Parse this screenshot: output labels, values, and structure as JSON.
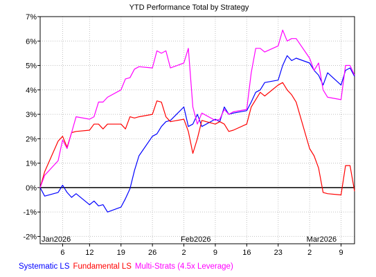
{
  "chart_data": {
    "type": "line",
    "title": "YTD Performance Total by Strategy",
    "xlabel": "",
    "ylabel": "",
    "ylim": [
      -2.3,
      7.0
    ],
    "y_ticks": [
      {
        "value": 7,
        "label": "7%"
      },
      {
        "value": 6,
        "label": "6%"
      },
      {
        "value": 5,
        "label": "5%"
      },
      {
        "value": 4,
        "label": "4%"
      },
      {
        "value": 3,
        "label": "3%"
      },
      {
        "value": 2,
        "label": "2%"
      },
      {
        "value": 1,
        "label": "1%"
      },
      {
        "value": 0,
        "label": "0%"
      },
      {
        "value": -1,
        "label": "-1%"
      },
      {
        "value": -2,
        "label": "-2%"
      }
    ],
    "x_range": [
      "2026-01-01",
      "2026-03-12"
    ],
    "x_ticks": [
      {
        "date": "2026-01-06",
        "label": "6"
      },
      {
        "date": "2026-01-12",
        "label": "12"
      },
      {
        "date": "2026-01-19",
        "label": "19"
      },
      {
        "date": "2026-01-26",
        "label": "26"
      },
      {
        "date": "2026-02-02",
        "label": "2"
      },
      {
        "date": "2026-02-09",
        "label": "9"
      },
      {
        "date": "2026-02-16",
        "label": "16"
      },
      {
        "date": "2026-02-23",
        "label": "23"
      },
      {
        "date": "2026-03-02",
        "label": "2"
      },
      {
        "date": "2026-03-09",
        "label": "9"
      }
    ],
    "period_labels": [
      {
        "date": "2026-01-01",
        "label": "Jan2026"
      },
      {
        "date": "2026-02-01",
        "label": "Feb2026"
      },
      {
        "date": "2026-03-01",
        "label": "Mar2026"
      }
    ],
    "grid": true,
    "zero_line": true,
    "legend_position": "bottom",
    "series": [
      {
        "name": "Systematic LS",
        "color": "#0000ff",
        "points": [
          [
            "2026-01-01",
            0.0
          ],
          [
            "2026-01-02",
            -0.35
          ],
          [
            "2026-01-05",
            -0.2
          ],
          [
            "2026-01-06",
            0.1
          ],
          [
            "2026-01-07",
            -0.2
          ],
          [
            "2026-01-08",
            -0.4
          ],
          [
            "2026-01-09",
            -0.25
          ],
          [
            "2026-01-12",
            -0.7
          ],
          [
            "2026-01-13",
            -0.55
          ],
          [
            "2026-01-14",
            -0.75
          ],
          [
            "2026-01-15",
            -0.7
          ],
          [
            "2026-01-16",
            -1.0
          ],
          [
            "2026-01-19",
            -0.8
          ],
          [
            "2026-01-20",
            -0.45
          ],
          [
            "2026-01-21",
            -0.05
          ],
          [
            "2026-01-22",
            0.7
          ],
          [
            "2026-01-23",
            1.3
          ],
          [
            "2026-01-26",
            2.1
          ],
          [
            "2026-01-27",
            2.2
          ],
          [
            "2026-01-28",
            2.5
          ],
          [
            "2026-01-29",
            2.7
          ],
          [
            "2026-01-30",
            2.75
          ],
          [
            "2026-02-02",
            3.3
          ],
          [
            "2026-02-03",
            2.5
          ],
          [
            "2026-02-04",
            2.6
          ],
          [
            "2026-02-05",
            3.0
          ],
          [
            "2026-02-06",
            2.5
          ],
          [
            "2026-02-09",
            2.8
          ],
          [
            "2026-02-10",
            2.7
          ],
          [
            "2026-02-11",
            3.3
          ],
          [
            "2026-02-12",
            3.0
          ],
          [
            "2026-02-13",
            3.05
          ],
          [
            "2026-02-16",
            3.15
          ],
          [
            "2026-02-17",
            3.5
          ],
          [
            "2026-02-18",
            3.9
          ],
          [
            "2026-02-19",
            4.0
          ],
          [
            "2026-02-20",
            4.3
          ],
          [
            "2026-02-23",
            4.4
          ],
          [
            "2026-02-24",
            5.0
          ],
          [
            "2026-02-25",
            5.4
          ],
          [
            "2026-02-26",
            5.2
          ],
          [
            "2026-02-27",
            5.3
          ],
          [
            "2026-03-02",
            5.1
          ],
          [
            "2026-03-03",
            4.8
          ],
          [
            "2026-03-04",
            4.6
          ],
          [
            "2026-03-05",
            4.2
          ],
          [
            "2026-03-06",
            4.7
          ],
          [
            "2026-03-09",
            4.2
          ],
          [
            "2026-03-10",
            4.8
          ],
          [
            "2026-03-11",
            4.9
          ],
          [
            "2026-03-12",
            4.55
          ]
        ]
      },
      {
        "name": "Fundamental LS",
        "color": "#ff0000",
        "points": [
          [
            "2026-01-01",
            0.0
          ],
          [
            "2026-01-02",
            0.65
          ],
          [
            "2026-01-05",
            1.9
          ],
          [
            "2026-01-06",
            2.1
          ],
          [
            "2026-01-07",
            1.65
          ],
          [
            "2026-01-08",
            2.25
          ],
          [
            "2026-01-09",
            2.3
          ],
          [
            "2026-01-12",
            2.35
          ],
          [
            "2026-01-13",
            2.6
          ],
          [
            "2026-01-14",
            2.6
          ],
          [
            "2026-01-15",
            2.4
          ],
          [
            "2026-01-16",
            2.6
          ],
          [
            "2026-01-19",
            2.6
          ],
          [
            "2026-01-20",
            2.4
          ],
          [
            "2026-01-21",
            2.9
          ],
          [
            "2026-01-22",
            2.85
          ],
          [
            "2026-01-23",
            2.9
          ],
          [
            "2026-01-26",
            3.0
          ],
          [
            "2026-01-27",
            3.55
          ],
          [
            "2026-01-28",
            3.5
          ],
          [
            "2026-01-29",
            2.9
          ],
          [
            "2026-01-30",
            2.7
          ],
          [
            "2026-02-02",
            2.8
          ],
          [
            "2026-02-03",
            2.3
          ],
          [
            "2026-02-04",
            1.4
          ],
          [
            "2026-02-05",
            2.0
          ],
          [
            "2026-02-06",
            2.75
          ],
          [
            "2026-02-09",
            2.6
          ],
          [
            "2026-02-10",
            2.7
          ],
          [
            "2026-02-11",
            2.6
          ],
          [
            "2026-02-12",
            2.3
          ],
          [
            "2026-02-13",
            2.35
          ],
          [
            "2026-02-16",
            2.6
          ],
          [
            "2026-02-17",
            3.3
          ],
          [
            "2026-02-18",
            3.6
          ],
          [
            "2026-02-19",
            3.9
          ],
          [
            "2026-02-20",
            3.75
          ],
          [
            "2026-02-23",
            4.2
          ],
          [
            "2026-02-24",
            4.3
          ],
          [
            "2026-02-25",
            4.0
          ],
          [
            "2026-02-26",
            3.8
          ],
          [
            "2026-02-27",
            3.5
          ],
          [
            "2026-03-02",
            1.6
          ],
          [
            "2026-03-03",
            1.3
          ],
          [
            "2026-03-04",
            0.8
          ],
          [
            "2026-03-05",
            -0.2
          ],
          [
            "2026-03-06",
            -0.25
          ],
          [
            "2026-03-09",
            -0.3
          ],
          [
            "2026-03-10",
            0.9
          ],
          [
            "2026-03-11",
            0.9
          ],
          [
            "2026-03-12",
            -0.15
          ]
        ]
      },
      {
        "name": "Multi-Strats (4.5x Leverage)",
        "color": "#ff00ff",
        "points": [
          [
            "2026-01-01",
            0.0
          ],
          [
            "2026-01-02",
            0.5
          ],
          [
            "2026-01-05",
            1.1
          ],
          [
            "2026-01-06",
            1.95
          ],
          [
            "2026-01-07",
            1.6
          ],
          [
            "2026-01-08",
            2.25
          ],
          [
            "2026-01-09",
            2.9
          ],
          [
            "2026-01-12",
            2.8
          ],
          [
            "2026-01-13",
            2.9
          ],
          [
            "2026-01-14",
            3.5
          ],
          [
            "2026-01-15",
            3.5
          ],
          [
            "2026-01-16",
            3.7
          ],
          [
            "2026-01-19",
            4.0
          ],
          [
            "2026-01-20",
            4.45
          ],
          [
            "2026-01-21",
            4.5
          ],
          [
            "2026-01-22",
            4.85
          ],
          [
            "2026-01-23",
            4.95
          ],
          [
            "2026-01-26",
            4.9
          ],
          [
            "2026-01-27",
            5.6
          ],
          [
            "2026-01-28",
            5.5
          ],
          [
            "2026-01-29",
            5.6
          ],
          [
            "2026-01-30",
            4.9
          ],
          [
            "2026-02-02",
            5.1
          ],
          [
            "2026-02-03",
            5.7
          ],
          [
            "2026-02-04",
            3.3
          ],
          [
            "2026-02-05",
            2.6
          ],
          [
            "2026-02-06",
            3.05
          ],
          [
            "2026-02-09",
            2.75
          ],
          [
            "2026-02-10",
            2.8
          ],
          [
            "2026-02-11",
            3.2
          ],
          [
            "2026-02-12",
            3.0
          ],
          [
            "2026-02-13",
            3.1
          ],
          [
            "2026-02-16",
            3.2
          ],
          [
            "2026-02-17",
            4.7
          ],
          [
            "2026-02-18",
            5.7
          ],
          [
            "2026-02-19",
            5.7
          ],
          [
            "2026-02-20",
            5.55
          ],
          [
            "2026-02-23",
            5.8
          ],
          [
            "2026-02-24",
            6.45
          ],
          [
            "2026-02-25",
            6.0
          ],
          [
            "2026-02-26",
            6.1
          ],
          [
            "2026-02-27",
            6.1
          ],
          [
            "2026-03-02",
            5.3
          ],
          [
            "2026-03-03",
            4.8
          ],
          [
            "2026-03-04",
            5.1
          ],
          [
            "2026-03-05",
            4.0
          ],
          [
            "2026-03-06",
            3.7
          ],
          [
            "2026-03-09",
            3.6
          ],
          [
            "2026-03-10",
            5.0
          ],
          [
            "2026-03-11",
            5.0
          ],
          [
            "2026-03-12",
            4.6
          ]
        ]
      }
    ]
  }
}
